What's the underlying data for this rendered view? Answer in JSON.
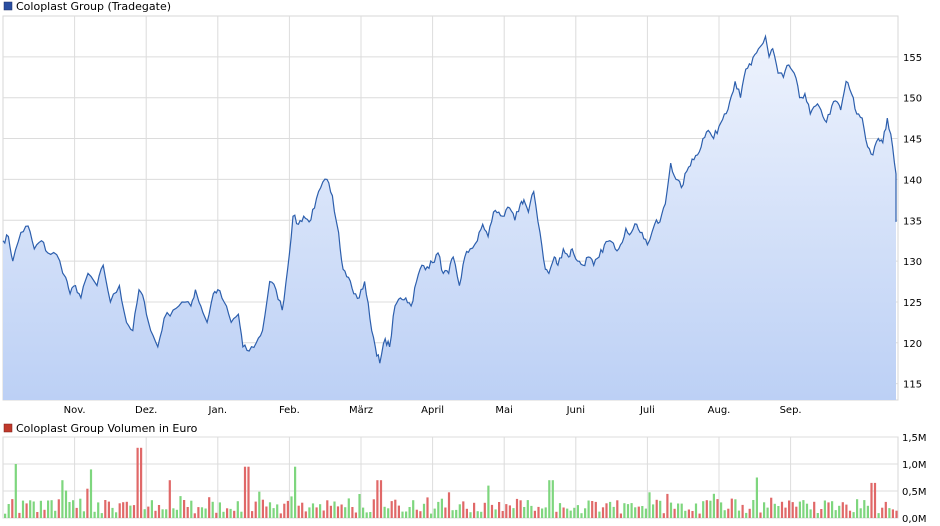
{
  "chart_data": [
    {
      "type": "area",
      "title": "Coloplast Group (Tradegate)",
      "colors": {
        "line": "#2d5fad",
        "fill_top": "#eef3fd",
        "fill_bottom": "#bcd0f5",
        "legend": "#2a4ea0"
      },
      "ylim": [
        113,
        160
      ],
      "yticks": [
        115,
        120,
        125,
        130,
        135,
        140,
        145,
        150,
        155
      ],
      "month_labels": [
        "Nov.",
        "Dez.",
        "Jan.",
        "Feb.",
        "März",
        "April",
        "Mai",
        "Juni",
        "Juli",
        "Aug.",
        "Sep."
      ],
      "month_positions": [
        0.08,
        0.16,
        0.24,
        0.32,
        0.4,
        0.48,
        0.56,
        0.64,
        0.72,
        0.8,
        0.88
      ],
      "keypoints": [
        [
          0.0,
          132.5
        ],
        [
          0.006,
          133
        ],
        [
          0.011,
          130
        ],
        [
          0.02,
          133.5
        ],
        [
          0.028,
          134.3
        ],
        [
          0.035,
          131.5
        ],
        [
          0.043,
          132.5
        ],
        [
          0.05,
          131
        ],
        [
          0.06,
          130.8
        ],
        [
          0.07,
          128
        ],
        [
          0.075,
          126
        ],
        [
          0.081,
          127
        ],
        [
          0.087,
          125.5
        ],
        [
          0.095,
          128.5
        ],
        [
          0.105,
          127
        ],
        [
          0.112,
          129.5
        ],
        [
          0.12,
          125
        ],
        [
          0.13,
          127
        ],
        [
          0.138,
          122.5
        ],
        [
          0.145,
          121.5
        ],
        [
          0.152,
          126.5
        ],
        [
          0.158,
          125
        ],
        [
          0.165,
          121.5
        ],
        [
          0.173,
          119.5
        ],
        [
          0.18,
          123
        ],
        [
          0.19,
          124
        ],
        [
          0.2,
          125
        ],
        [
          0.21,
          124.5
        ],
        [
          0.215,
          126.5
        ],
        [
          0.221,
          124.5
        ],
        [
          0.228,
          122.5
        ],
        [
          0.235,
          126
        ],
        [
          0.24,
          126.5
        ],
        [
          0.247,
          125
        ],
        [
          0.255,
          122.5
        ],
        [
          0.263,
          123.5
        ],
        [
          0.268,
          119.5
        ],
        [
          0.275,
          119
        ],
        [
          0.283,
          120
        ],
        [
          0.29,
          121.5
        ],
        [
          0.298,
          127.5
        ],
        [
          0.305,
          126.5
        ],
        [
          0.312,
          124
        ],
        [
          0.318,
          129
        ],
        [
          0.324,
          135.5
        ],
        [
          0.33,
          134.5
        ],
        [
          0.336,
          135.5
        ],
        [
          0.342,
          134.8
        ],
        [
          0.348,
          136.5
        ],
        [
          0.355,
          139
        ],
        [
          0.362,
          140
        ],
        [
          0.368,
          138
        ],
        [
          0.375,
          133.5
        ],
        [
          0.38,
          129
        ],
        [
          0.386,
          128
        ],
        [
          0.392,
          126
        ],
        [
          0.398,
          125.5
        ],
        [
          0.404,
          127.5
        ],
        [
          0.41,
          123
        ],
        [
          0.416,
          119.5
        ],
        [
          0.421,
          117.5
        ],
        [
          0.427,
          120.5
        ],
        [
          0.432,
          119.5
        ],
        [
          0.438,
          124.5
        ],
        [
          0.444,
          125.5
        ],
        [
          0.45,
          125.5
        ],
        [
          0.456,
          124.5
        ],
        [
          0.462,
          127.5
        ],
        [
          0.468,
          129.5
        ],
        [
          0.474,
          129.3
        ],
        [
          0.48,
          129.8
        ],
        [
          0.486,
          131
        ],
        [
          0.492,
          128.5
        ],
        [
          0.498,
          128.5
        ],
        [
          0.503,
          130.5
        ],
        [
          0.51,
          127
        ],
        [
          0.516,
          130.5
        ],
        [
          0.522,
          131.5
        ],
        [
          0.53,
          132.5
        ],
        [
          0.536,
          134.5
        ],
        [
          0.542,
          133
        ],
        [
          0.548,
          136
        ],
        [
          0.554,
          136
        ],
        [
          0.56,
          135.5
        ],
        [
          0.566,
          136.5
        ],
        [
          0.572,
          135
        ],
        [
          0.578,
          137
        ],
        [
          0.582,
          137.5
        ],
        [
          0.587,
          136
        ],
        [
          0.593,
          138.5
        ],
        [
          0.6,
          133.5
        ],
        [
          0.606,
          129
        ],
        [
          0.61,
          128.5
        ],
        [
          0.616,
          130.5
        ],
        [
          0.62,
          129.5
        ],
        [
          0.626,
          131.5
        ],
        [
          0.632,
          130.5
        ],
        [
          0.636,
          131.5
        ],
        [
          0.642,
          130
        ],
        [
          0.648,
          129.5
        ],
        [
          0.654,
          130.5
        ],
        [
          0.66,
          129.5
        ],
        [
          0.666,
          130.5
        ],
        [
          0.672,
          132
        ],
        [
          0.678,
          132.5
        ],
        [
          0.684,
          131.5
        ],
        [
          0.69,
          132
        ],
        [
          0.696,
          134
        ],
        [
          0.702,
          133.5
        ],
        [
          0.708,
          134.5
        ],
        [
          0.714,
          133.5
        ],
        [
          0.72,
          132
        ],
        [
          0.728,
          134.5
        ],
        [
          0.734,
          134.8
        ],
        [
          0.74,
          137
        ],
        [
          0.746,
          142
        ],
        [
          0.752,
          140
        ],
        [
          0.758,
          139
        ],
        [
          0.764,
          141
        ],
        [
          0.77,
          142.5
        ],
        [
          0.776,
          143
        ],
        [
          0.782,
          145
        ],
        [
          0.788,
          146
        ],
        [
          0.794,
          145
        ],
        [
          0.8,
          146.5
        ],
        [
          0.806,
          148
        ],
        [
          0.812,
          149.5
        ],
        [
          0.818,
          152
        ],
        [
          0.824,
          150
        ],
        [
          0.83,
          153.5
        ],
        [
          0.836,
          154
        ],
        [
          0.842,
          155.5
        ],
        [
          0.848,
          156.5
        ],
        [
          0.852,
          157.5
        ],
        [
          0.856,
          155
        ],
        [
          0.86,
          156
        ],
        [
          0.866,
          153
        ],
        [
          0.872,
          152.5
        ],
        [
          0.878,
          154
        ],
        [
          0.884,
          153
        ],
        [
          0.89,
          150
        ],
        [
          0.896,
          150.5
        ],
        [
          0.902,
          148
        ],
        [
          0.908,
          149
        ],
        [
          0.914,
          148.5
        ],
        [
          0.92,
          147
        ],
        [
          0.926,
          149
        ],
        [
          0.932,
          149.5
        ],
        [
          0.936,
          148.5
        ],
        [
          0.942,
          152
        ],
        [
          0.948,
          150.5
        ],
        [
          0.954,
          148
        ],
        [
          0.96,
          147.5
        ],
        [
          0.966,
          144
        ],
        [
          0.972,
          143
        ],
        [
          0.978,
          145
        ],
        [
          0.983,
          144.5
        ],
        [
          0.988,
          147.5
        ],
        [
          0.994,
          144
        ],
        [
          1.0,
          139.5
        ],
        [
          1.006,
          137
        ],
        [
          1.012,
          134.8
        ]
      ]
    },
    {
      "type": "bar",
      "title": "Coloplast Group Volumen in Euro",
      "colors": {
        "up": "#7ed67e",
        "down": "#e06868",
        "legend": "#c0392b"
      },
      "ylim": [
        0,
        1.5
      ],
      "yticks": [
        0,
        0.5,
        1.0,
        1.5
      ],
      "ytick_labels": [
        "0,0M",
        "0,5M",
        "1,0M",
        "1,5M"
      ],
      "spikes": [
        {
          "pos": 0.011,
          "value": 1.0,
          "up": true
        },
        {
          "pos": 0.063,
          "value": 0.7,
          "up": true
        },
        {
          "pos": 0.096,
          "value": 0.9,
          "up": true
        },
        {
          "pos": 0.15,
          "value": 1.3,
          "up": false
        },
        {
          "pos": 0.183,
          "value": 0.7,
          "up": false
        },
        {
          "pos": 0.27,
          "value": 0.95,
          "up": false
        },
        {
          "pos": 0.324,
          "value": 0.95,
          "up": true
        },
        {
          "pos": 0.418,
          "value": 0.7,
          "up": false
        },
        {
          "pos": 0.54,
          "value": 0.6,
          "up": true
        },
        {
          "pos": 0.61,
          "value": 0.7,
          "up": true
        },
        {
          "pos": 0.84,
          "value": 0.75,
          "up": true
        },
        {
          "pos": 0.97,
          "value": 0.65,
          "up": false
        }
      ]
    }
  ]
}
